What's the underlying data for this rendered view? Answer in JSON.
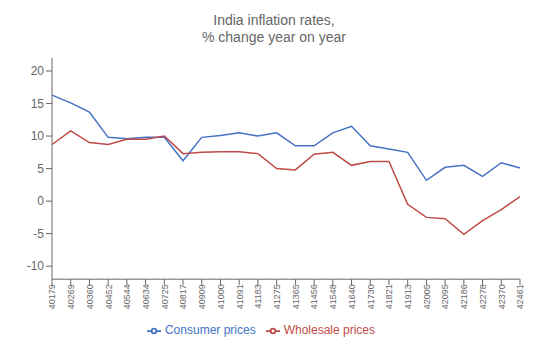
{
  "chart_data": {
    "type": "line",
    "title": "India inflation rates,\n% change year on year",
    "categories": [
      "40179",
      "40269",
      "40360",
      "40452",
      "40544",
      "40634",
      "40725",
      "40817",
      "40909",
      "41000",
      "41091",
      "41183",
      "41275",
      "41365",
      "41456",
      "41548",
      "41640",
      "41730",
      "41821",
      "41913",
      "42005",
      "42095",
      "42186",
      "42278",
      "42370",
      "42461"
    ],
    "series": [
      {
        "name": "Consumer prices",
        "color": "#4472C4",
        "values": [
          16.3,
          15.1,
          13.7,
          9.8,
          9.6,
          9.8,
          9.8,
          6.2,
          9.8,
          10.1,
          10.5,
          10.0,
          10.5,
          8.5,
          8.5,
          10.5,
          11.5,
          8.5,
          8.0,
          7.5,
          3.2,
          5.2,
          5.5,
          3.8,
          5.9,
          5.1
        ]
      },
      {
        "name": "Wholesale prices",
        "color": "#BE4B48",
        "values": [
          8.7,
          10.8,
          9.0,
          8.7,
          9.5,
          9.5,
          10.0,
          7.3,
          7.5,
          7.6,
          7.6,
          7.3,
          5.0,
          4.8,
          7.2,
          7.5,
          5.5,
          6.1,
          6.1,
          -0.5,
          -2.5,
          -2.7,
          -5.1,
          -3.0,
          -1.3,
          0.7
        ]
      }
    ],
    "ylim": [
      -12,
      22
    ],
    "yticks": [
      20,
      15,
      10,
      5,
      0,
      -5,
      -10
    ],
    "grid": false,
    "legend": "bottom"
  }
}
